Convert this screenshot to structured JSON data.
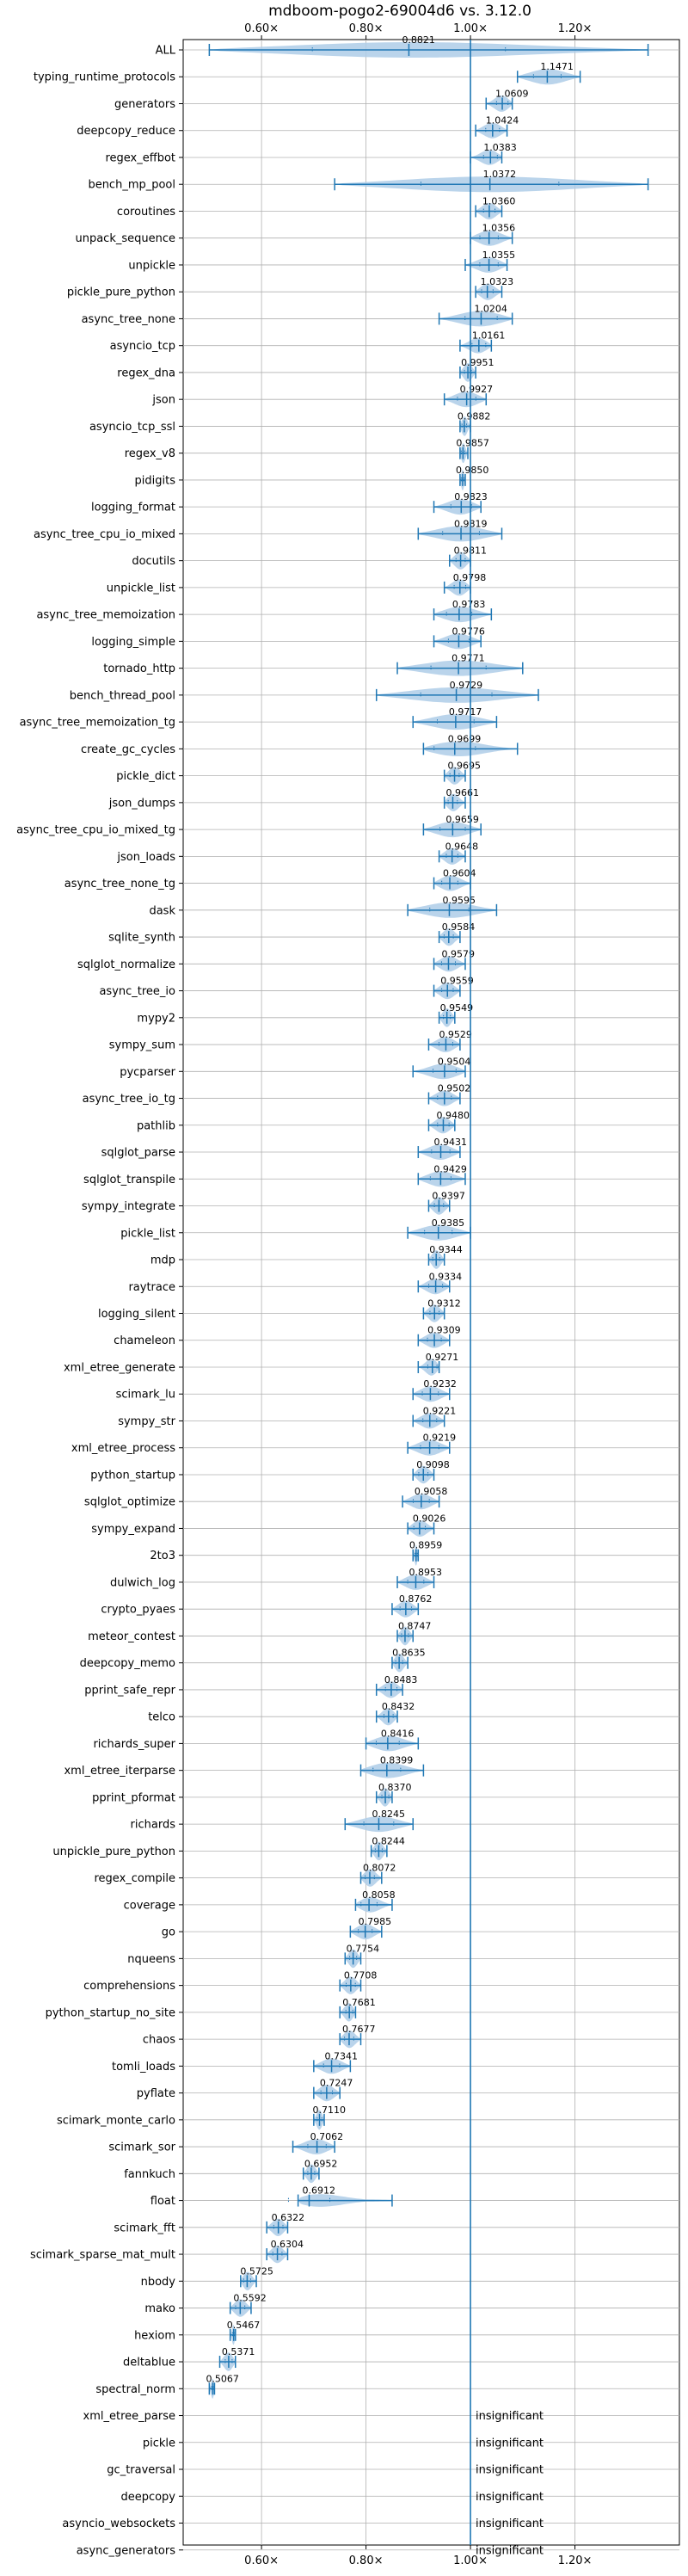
{
  "chart_data": {
    "type": "violin",
    "title": "mdboom-pogo2-69004d6 vs. 3.12.0",
    "xlim": [
      0.45,
      1.4
    ],
    "xticks": [
      0.6,
      0.8,
      1.0,
      1.2
    ],
    "xtick_labels": [
      "0.60×",
      "0.80×",
      "1.00×",
      "1.20×"
    ],
    "reference_line": 1.0,
    "grid": true,
    "insignificant_label": "insignificant",
    "rows": [
      {
        "name": "ALL",
        "median": 0.8821,
        "low": 0.5,
        "high": 1.34
      },
      {
        "name": "typing_runtime_protocols",
        "median": 1.1471,
        "low": 1.09,
        "high": 1.21
      },
      {
        "name": "generators",
        "median": 1.0609,
        "low": 1.03,
        "high": 1.08
      },
      {
        "name": "deepcopy_reduce",
        "median": 1.0424,
        "low": 1.01,
        "high": 1.07
      },
      {
        "name": "regex_effbot",
        "median": 1.0383,
        "low": 1.0,
        "high": 1.06
      },
      {
        "name": "bench_mp_pool",
        "median": 1.0372,
        "low": 0.74,
        "high": 1.34
      },
      {
        "name": "coroutines",
        "median": 1.036,
        "low": 1.01,
        "high": 1.06
      },
      {
        "name": "unpack_sequence",
        "median": 1.0356,
        "low": 1.0,
        "high": 1.08
      },
      {
        "name": "unpickle",
        "median": 1.0355,
        "low": 0.99,
        "high": 1.07
      },
      {
        "name": "pickle_pure_python",
        "median": 1.0323,
        "low": 1.01,
        "high": 1.06
      },
      {
        "name": "async_tree_none",
        "median": 1.0204,
        "low": 0.94,
        "high": 1.08
      },
      {
        "name": "asyncio_tcp",
        "median": 1.0161,
        "low": 0.98,
        "high": 1.04
      },
      {
        "name": "regex_dna",
        "median": 0.9951,
        "low": 0.98,
        "high": 1.01
      },
      {
        "name": "json",
        "median": 0.9927,
        "low": 0.95,
        "high": 1.03
      },
      {
        "name": "asyncio_tcp_ssl",
        "median": 0.9882,
        "low": 0.98,
        "high": 1.0
      },
      {
        "name": "regex_v8",
        "median": 0.9857,
        "low": 0.98,
        "high": 0.995
      },
      {
        "name": "pidigits",
        "median": 0.985,
        "low": 0.98,
        "high": 0.99
      },
      {
        "name": "logging_format",
        "median": 0.9823,
        "low": 0.93,
        "high": 1.02
      },
      {
        "name": "async_tree_cpu_io_mixed",
        "median": 0.9819,
        "low": 0.9,
        "high": 1.06
      },
      {
        "name": "docutils",
        "median": 0.9811,
        "low": 0.96,
        "high": 1.0
      },
      {
        "name": "unpickle_list",
        "median": 0.9798,
        "low": 0.95,
        "high": 1.0
      },
      {
        "name": "async_tree_memoization",
        "median": 0.9783,
        "low": 0.93,
        "high": 1.04
      },
      {
        "name": "logging_simple",
        "median": 0.9776,
        "low": 0.93,
        "high": 1.02
      },
      {
        "name": "tornado_http",
        "median": 0.9771,
        "low": 0.86,
        "high": 1.1
      },
      {
        "name": "bench_thread_pool",
        "median": 0.9729,
        "low": 0.82,
        "high": 1.13
      },
      {
        "name": "async_tree_memoization_tg",
        "median": 0.9717,
        "low": 0.89,
        "high": 1.05
      },
      {
        "name": "create_gc_cycles",
        "median": 0.9699,
        "low": 0.91,
        "high": 1.09
      },
      {
        "name": "pickle_dict",
        "median": 0.9695,
        "low": 0.95,
        "high": 0.99
      },
      {
        "name": "json_dumps",
        "median": 0.9661,
        "low": 0.95,
        "high": 0.99
      },
      {
        "name": "async_tree_cpu_io_mixed_tg",
        "median": 0.9659,
        "low": 0.91,
        "high": 1.02
      },
      {
        "name": "json_loads",
        "median": 0.9648,
        "low": 0.94,
        "high": 0.99
      },
      {
        "name": "async_tree_none_tg",
        "median": 0.9604,
        "low": 0.93,
        "high": 1.0
      },
      {
        "name": "dask",
        "median": 0.9595,
        "low": 0.88,
        "high": 1.05
      },
      {
        "name": "sqlite_synth",
        "median": 0.9584,
        "low": 0.94,
        "high": 0.98
      },
      {
        "name": "sqlglot_normalize",
        "median": 0.9579,
        "low": 0.93,
        "high": 0.99
      },
      {
        "name": "async_tree_io",
        "median": 0.9559,
        "low": 0.93,
        "high": 0.98
      },
      {
        "name": "mypy2",
        "median": 0.9549,
        "low": 0.94,
        "high": 0.97
      },
      {
        "name": "sympy_sum",
        "median": 0.9529,
        "low": 0.92,
        "high": 0.98
      },
      {
        "name": "pycparser",
        "median": 0.9504,
        "low": 0.89,
        "high": 0.99
      },
      {
        "name": "async_tree_io_tg",
        "median": 0.9502,
        "low": 0.92,
        "high": 0.98
      },
      {
        "name": "pathlib",
        "median": 0.948,
        "low": 0.92,
        "high": 0.97
      },
      {
        "name": "sqlglot_parse",
        "median": 0.9431,
        "low": 0.9,
        "high": 0.98
      },
      {
        "name": "sqlglot_transpile",
        "median": 0.9429,
        "low": 0.9,
        "high": 0.99
      },
      {
        "name": "sympy_integrate",
        "median": 0.9397,
        "low": 0.92,
        "high": 0.96
      },
      {
        "name": "pickle_list",
        "median": 0.9385,
        "low": 0.88,
        "high": 1.0
      },
      {
        "name": "mdp",
        "median": 0.9344,
        "low": 0.92,
        "high": 0.95
      },
      {
        "name": "raytrace",
        "median": 0.9334,
        "low": 0.9,
        "high": 0.96
      },
      {
        "name": "logging_silent",
        "median": 0.9312,
        "low": 0.91,
        "high": 0.95
      },
      {
        "name": "chameleon",
        "median": 0.9309,
        "low": 0.9,
        "high": 0.96
      },
      {
        "name": "xml_etree_generate",
        "median": 0.9271,
        "low": 0.9,
        "high": 0.94
      },
      {
        "name": "scimark_lu",
        "median": 0.9232,
        "low": 0.89,
        "high": 0.96
      },
      {
        "name": "sympy_str",
        "median": 0.9221,
        "low": 0.89,
        "high": 0.95
      },
      {
        "name": "xml_etree_process",
        "median": 0.9219,
        "low": 0.88,
        "high": 0.96
      },
      {
        "name": "python_startup",
        "median": 0.9098,
        "low": 0.89,
        "high": 0.93
      },
      {
        "name": "sqlglot_optimize",
        "median": 0.9058,
        "low": 0.87,
        "high": 0.94
      },
      {
        "name": "sympy_expand",
        "median": 0.9026,
        "low": 0.88,
        "high": 0.93
      },
      {
        "name": "2to3",
        "median": 0.8959,
        "low": 0.89,
        "high": 0.9
      },
      {
        "name": "dulwich_log",
        "median": 0.8953,
        "low": 0.86,
        "high": 0.93
      },
      {
        "name": "crypto_pyaes",
        "median": 0.8762,
        "low": 0.85,
        "high": 0.9
      },
      {
        "name": "meteor_contest",
        "median": 0.8747,
        "low": 0.86,
        "high": 0.89
      },
      {
        "name": "deepcopy_memo",
        "median": 0.8635,
        "low": 0.85,
        "high": 0.88
      },
      {
        "name": "pprint_safe_repr",
        "median": 0.8483,
        "low": 0.82,
        "high": 0.87
      },
      {
        "name": "telco",
        "median": 0.8432,
        "low": 0.82,
        "high": 0.86
      },
      {
        "name": "richards_super",
        "median": 0.8416,
        "low": 0.8,
        "high": 0.9
      },
      {
        "name": "xml_etree_iterparse",
        "median": 0.8399,
        "low": 0.79,
        "high": 0.91
      },
      {
        "name": "pprint_pformat",
        "median": 0.837,
        "low": 0.82,
        "high": 0.85
      },
      {
        "name": "richards",
        "median": 0.8245,
        "low": 0.76,
        "high": 0.89
      },
      {
        "name": "unpickle_pure_python",
        "median": 0.8244,
        "low": 0.81,
        "high": 0.84
      },
      {
        "name": "regex_compile",
        "median": 0.8072,
        "low": 0.79,
        "high": 0.83
      },
      {
        "name": "coverage",
        "median": 0.8058,
        "low": 0.78,
        "high": 0.85
      },
      {
        "name": "go",
        "median": 0.7985,
        "low": 0.77,
        "high": 0.83
      },
      {
        "name": "nqueens",
        "median": 0.7754,
        "low": 0.76,
        "high": 0.79
      },
      {
        "name": "comprehensions",
        "median": 0.7708,
        "low": 0.75,
        "high": 0.79
      },
      {
        "name": "python_startup_no_site",
        "median": 0.7681,
        "low": 0.75,
        "high": 0.78
      },
      {
        "name": "chaos",
        "median": 0.7677,
        "low": 0.75,
        "high": 0.79
      },
      {
        "name": "tomli_loads",
        "median": 0.7341,
        "low": 0.7,
        "high": 0.77
      },
      {
        "name": "pyflate",
        "median": 0.7247,
        "low": 0.7,
        "high": 0.75
      },
      {
        "name": "scimark_monte_carlo",
        "median": 0.711,
        "low": 0.7,
        "high": 0.72
      },
      {
        "name": "scimark_sor",
        "median": 0.7062,
        "low": 0.66,
        "high": 0.74
      },
      {
        "name": "fannkuch",
        "median": 0.6952,
        "low": 0.68,
        "high": 0.71
      },
      {
        "name": "float",
        "median": 0.6912,
        "low": 0.67,
        "high": 0.85
      },
      {
        "name": "scimark_fft",
        "median": 0.6322,
        "low": 0.61,
        "high": 0.65
      },
      {
        "name": "scimark_sparse_mat_mult",
        "median": 0.6304,
        "low": 0.61,
        "high": 0.65
      },
      {
        "name": "nbody",
        "median": 0.5725,
        "low": 0.56,
        "high": 0.59
      },
      {
        "name": "mako",
        "median": 0.5592,
        "low": 0.54,
        "high": 0.58
      },
      {
        "name": "hexiom",
        "median": 0.5467,
        "low": 0.54,
        "high": 0.55
      },
      {
        "name": "deltablue",
        "median": 0.5371,
        "low": 0.52,
        "high": 0.55
      },
      {
        "name": "spectral_norm",
        "median": 0.5067,
        "low": 0.5,
        "high": 0.51
      },
      {
        "name": "xml_etree_parse",
        "insignificant": true
      },
      {
        "name": "pickle",
        "insignificant": true
      },
      {
        "name": "gc_traversal",
        "insignificant": true
      },
      {
        "name": "deepcopy",
        "insignificant": true
      },
      {
        "name": "asyncio_websockets",
        "insignificant": true
      },
      {
        "name": "async_generators",
        "insignificant": true
      }
    ]
  }
}
